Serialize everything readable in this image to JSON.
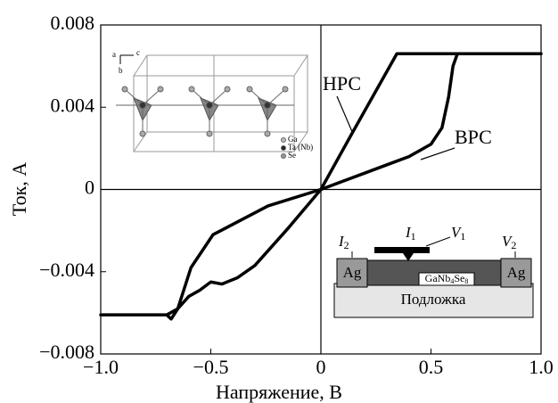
{
  "chart_data": {
    "type": "line",
    "x_label": "Напряжение, В",
    "y_label": "Ток, А",
    "xlim": [
      -1.0,
      1.0
    ],
    "ylim": [
      -0.008,
      0.008
    ],
    "xticks": [
      {
        "value": -1.0,
        "label": "−1.0"
      },
      {
        "value": -0.5,
        "label": "−0.5"
      },
      0,
      0.5,
      {
        "value": 1.0,
        "label": "1.0"
      }
    ],
    "yticks": [
      {
        "value": -0.008,
        "label": "−0.008"
      },
      {
        "value": -0.004,
        "label": "−0.004"
      },
      0,
      0.004,
      0.008
    ],
    "series": [
      {
        "color": "#000000",
        "x": [
          0,
          0.1,
          0.2,
          0.3,
          0.4,
          0.5,
          0.55,
          0.58,
          0.6,
          0.62,
          1.0,
          0.345,
          0.14,
          0
        ],
        "values": [
          0,
          0.0004,
          0.0008,
          0.0012,
          0.0016,
          0.0022,
          0.003,
          0.0045,
          0.006,
          0.0066,
          0.0066,
          0.0066,
          0.0027,
          0
        ]
      },
      {
        "color": "#000000",
        "x": [
          0,
          -0.15,
          -0.3,
          -0.38,
          -0.45,
          -0.5,
          -0.55,
          -0.6,
          -0.65,
          -0.68,
          -0.7,
          -1.0,
          -0.7,
          -0.65,
          -0.59,
          -0.49,
          -0.24,
          0
        ],
        "values": [
          0,
          -0.0019,
          -0.0037,
          -0.0043,
          -0.0046,
          -0.0045,
          -0.0049,
          -0.0052,
          -0.0058,
          -0.0063,
          -0.0061,
          -0.0061,
          -0.0061,
          -0.0058,
          -0.0038,
          -0.0022,
          -0.0008,
          0
        ]
      }
    ],
    "annotations": {
      "low_resistance": "НРС",
      "high_resistance": "ВРС"
    },
    "crystal_inset": {
      "axes": [
        "a",
        "b",
        "c"
      ],
      "legend": [
        "Ga",
        "Ta (Nb)",
        "Se"
      ]
    },
    "device_inset": {
      "left_contact": "Ag",
      "right_contact": "Ag",
      "substrate": "Подложка",
      "film": [
        "GaNb",
        "4",
        "Se",
        "8"
      ],
      "current_1": [
        "I",
        "1"
      ],
      "voltage_1": [
        "V",
        "1"
      ],
      "current_2": [
        "I",
        "2"
      ],
      "voltage_2": [
        "V",
        "2"
      ]
    }
  }
}
